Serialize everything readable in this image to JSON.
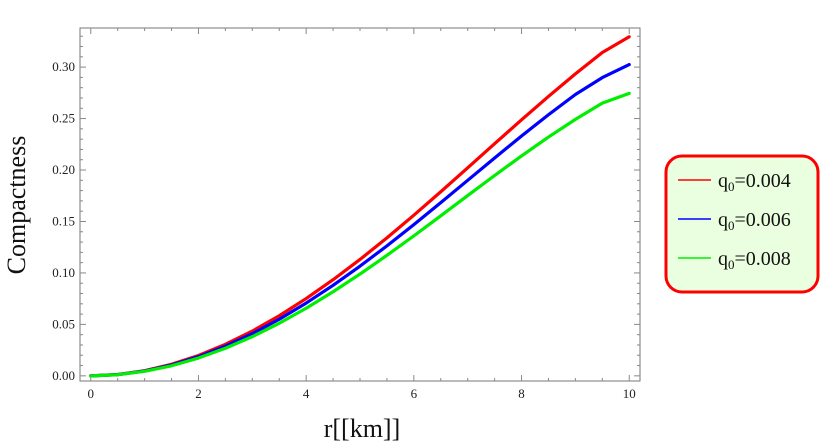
{
  "chart_data": {
    "type": "line",
    "title": "",
    "xlabel": "r[[km]]",
    "ylabel": "Compactness",
    "xlim": [
      -0.2,
      10.2
    ],
    "ylim": [
      -0.005,
      0.338
    ],
    "xticks": [
      "0",
      "2",
      "4",
      "6",
      "8",
      "10"
    ],
    "xtick_values": [
      0,
      2,
      4,
      6,
      8,
      10
    ],
    "yticks": [
      "0.00",
      "0.05",
      "0.10",
      "0.15",
      "0.20",
      "0.25",
      "0.30"
    ],
    "ytick_values": [
      0.0,
      0.05,
      0.1,
      0.15,
      0.2,
      0.25,
      0.3
    ],
    "grid": false,
    "legend_position": "right",
    "x": [
      0,
      0.5,
      1,
      1.5,
      2,
      2.5,
      3,
      3.5,
      4,
      4.5,
      5,
      5.5,
      6,
      6.5,
      7,
      7.5,
      8,
      8.5,
      9,
      9.5,
      10
    ],
    "series": [
      {
        "name_base": "q",
        "name_sub": "0",
        "name_rest": "=0.004",
        "color": "#ff0000",
        "values": [
          0.0,
          0.0013,
          0.005,
          0.0112,
          0.0198,
          0.0306,
          0.0435,
          0.0584,
          0.0751,
          0.0934,
          0.1131,
          0.1341,
          0.1561,
          0.1789,
          0.2022,
          0.2256,
          0.2488,
          0.2715,
          0.2934,
          0.3142,
          0.3295
        ]
      },
      {
        "name_base": "q",
        "name_sub": "0",
        "name_rest": "=0.006",
        "color": "#0000ff",
        "values": [
          0.0,
          0.0012,
          0.0047,
          0.0105,
          0.0186,
          0.0288,
          0.041,
          0.055,
          0.0707,
          0.088,
          0.1066,
          0.1263,
          0.147,
          0.1683,
          0.19,
          0.2117,
          0.2331,
          0.2537,
          0.2734,
          0.2898,
          0.3025
        ]
      },
      {
        "name_base": "q",
        "name_sub": "0",
        "name_rest": "=0.008",
        "color": "#00ee00",
        "values": [
          0.0,
          0.0011,
          0.0044,
          0.0098,
          0.0173,
          0.0268,
          0.0381,
          0.0511,
          0.0657,
          0.0817,
          0.0989,
          0.1171,
          0.136,
          0.1555,
          0.1752,
          0.1947,
          0.2137,
          0.232,
          0.2492,
          0.265,
          0.2745
        ]
      }
    ]
  },
  "legend": {
    "background": "#eaffdf",
    "border_color": "#ff0000"
  }
}
